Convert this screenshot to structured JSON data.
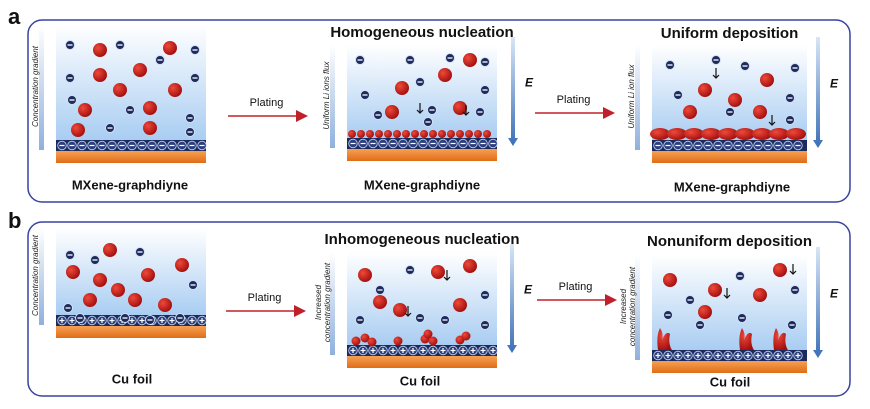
{
  "panel_a": {
    "label": "a",
    "scenes": [
      {
        "title": null,
        "side_label": "Concentration gradient",
        "substrate": "MXene-graphdiyne"
      },
      {
        "title": "Homogeneous nucleation",
        "side_label": "Uniform Li ions flux",
        "field": "E",
        "substrate": "MXene-graphdiyne"
      },
      {
        "title": "Uniform deposition",
        "side_label": "Uniform Li ion flux",
        "field": "E",
        "substrate": "MXene-graphdiyne"
      }
    ],
    "arrows": [
      "Plating",
      "Plating"
    ]
  },
  "panel_b": {
    "label": "b",
    "scenes": [
      {
        "title": null,
        "side_label": "Concentration gradient",
        "substrate": "Cu foil"
      },
      {
        "title": "Inhomogeneous nucleation",
        "side_label": [
          "Increased",
          "concentration gradient"
        ],
        "field": "E",
        "substrate": "Cu foil"
      },
      {
        "title": "Nonuniform deposition",
        "side_label": [
          "Increased",
          "concentration gradient"
        ],
        "field": "E",
        "substrate": "Cu foil"
      }
    ],
    "arrows": [
      "Plating",
      "Plating"
    ]
  }
}
